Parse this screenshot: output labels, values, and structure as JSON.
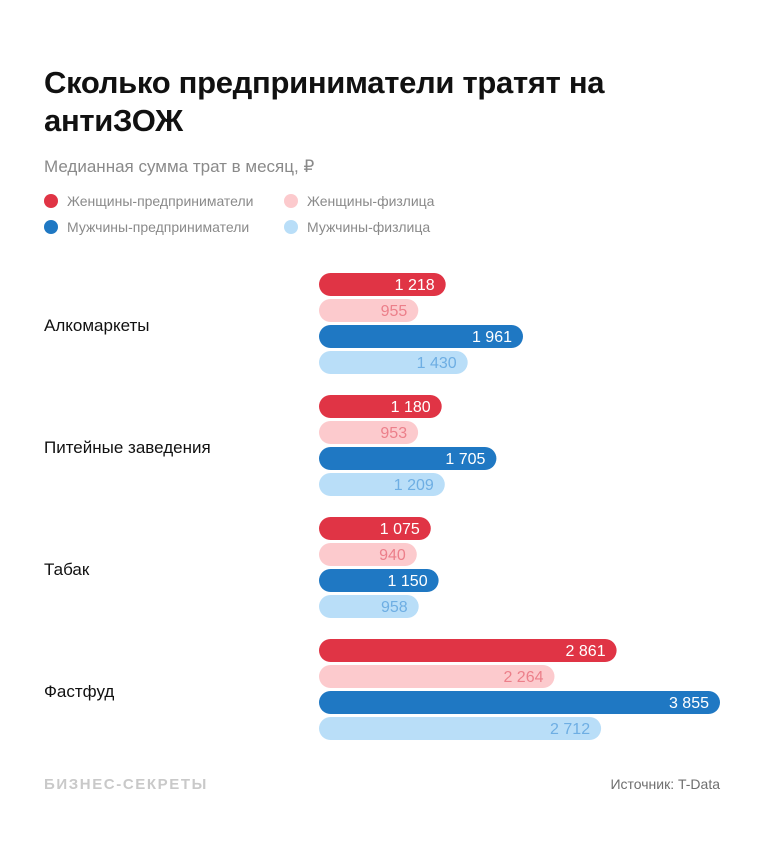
{
  "title": "Сколько предприниматели тратят на антиЗОЖ",
  "subtitle": "Медианная сумма трат в месяц, ₽",
  "source": "Источник: T-Data",
  "brand": "БИЗНЕС-СЕКРЕТЫ",
  "chart_data": {
    "type": "bar",
    "orientation": "horizontal",
    "title": "Сколько предприниматели тратят на антиЗОЖ",
    "subtitle": "Медианная сумма трат в месяц, ₽",
    "legend_position": "top-left",
    "grid": false,
    "xlim": [
      0,
      3855
    ],
    "categories": [
      "Алкомаркеты",
      "Питейные заведения",
      "Табак",
      "Фастфуд"
    ],
    "series": [
      {
        "name": "Женщины-предприниматели",
        "color": "#e03445",
        "label_color": "#ffffff",
        "values": [
          1218,
          1180,
          1075,
          2861
        ],
        "labels": [
          "1 218",
          "1 180",
          "1 075",
          "2 861"
        ]
      },
      {
        "name": "Женщины-физлица",
        "color": "#fccacd",
        "label_color": "#ec7f8a",
        "values": [
          955,
          953,
          940,
          2264
        ],
        "labels": [
          "955",
          "953",
          "940",
          "2 264"
        ]
      },
      {
        "name": "Мужчины-предприниматели",
        "color": "#1f78c3",
        "label_color": "#ffffff",
        "values": [
          1961,
          1705,
          1150,
          3855
        ],
        "labels": [
          "1 961",
          "1 705",
          "1 150",
          "3 855"
        ]
      },
      {
        "name": "Мужчины-физлица",
        "color": "#b9def8",
        "label_color": "#6eaee3",
        "values": [
          1430,
          1209,
          958,
          2712
        ],
        "labels": [
          "1 430",
          "1 209",
          "958",
          "2 712"
        ]
      }
    ]
  }
}
